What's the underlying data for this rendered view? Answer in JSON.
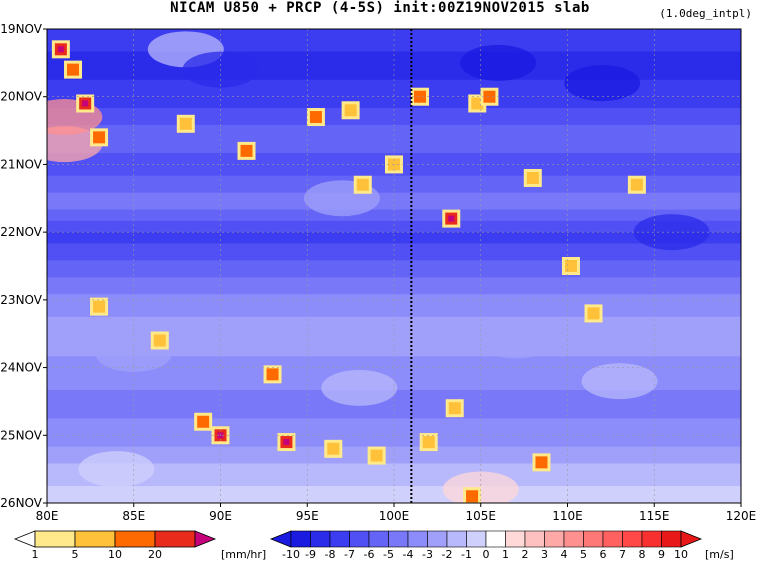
{
  "chart_data": {
    "type": "heatmap",
    "title": "NICAM  U850 + PRCP (4-5S) init:00Z19NOV2015 slab",
    "subtitle": "(1.0deg_intpl)",
    "x_ticks": [
      "80E",
      "85E",
      "90E",
      "95E",
      "100E",
      "105E",
      "110E",
      "115E",
      "120E"
    ],
    "x_range": [
      80,
      120
    ],
    "y_ticks": [
      "19NOV",
      "20NOV",
      "21NOV",
      "22NOV",
      "23NOV",
      "24NOV",
      "25NOV",
      "26NOV"
    ],
    "y_range": [
      "19NOV",
      "26NOV"
    ],
    "reference_line": {
      "lon": 101,
      "style": "dotted",
      "color": "#000000"
    },
    "grid": true,
    "precip_colorbar": {
      "unit": "[mm/hr]",
      "labels": [
        "1",
        "5",
        "10",
        "20"
      ],
      "colors": [
        "#ffffff",
        "#ffe98a",
        "#ffc13a",
        "#ff6a00",
        "#e82b1b",
        "#c6007a"
      ]
    },
    "wind_colorbar": {
      "unit": "[m/s]",
      "labels": [
        "-10",
        "-9",
        "-8",
        "-7",
        "-6",
        "-5",
        "-4",
        "-3",
        "-2",
        "-1",
        "0",
        "1",
        "2",
        "3",
        "4",
        "5",
        "6",
        "7",
        "8",
        "9",
        "10"
      ],
      "colors": [
        "#1a1ae0",
        "#2b2bea",
        "#3c3cf0",
        "#5050f4",
        "#6464f6",
        "#7878f8",
        "#8c8cfa",
        "#a0a0fb",
        "#b8b8fc",
        "#d0d0fd",
        "#ffffff",
        "#ffd8d8",
        "#ffc0c0",
        "#ffa8a8",
        "#ff9090",
        "#ff7878",
        "#ff6060",
        "#ff4848",
        "#f83030",
        "#e81818"
      ]
    },
    "wind_bands": [
      {
        "day": 19.0,
        "level": -8
      },
      {
        "day": 19.5,
        "level": -9
      },
      {
        "day": 20.0,
        "level": -8
      },
      {
        "day": 20.5,
        "level": -6
      },
      {
        "day": 21.0,
        "level": -7
      },
      {
        "day": 21.5,
        "level": -5
      },
      {
        "day": 22.0,
        "level": -8
      },
      {
        "day": 22.5,
        "level": -6
      },
      {
        "day": 23.0,
        "level": -4
      },
      {
        "day": 23.5,
        "level": -3
      },
      {
        "day": 24.0,
        "level": -4
      },
      {
        "day": 24.5,
        "level": -5
      },
      {
        "day": 25.0,
        "level": -4
      },
      {
        "day": 25.5,
        "level": -2
      },
      {
        "day": 26.0,
        "level": -1
      }
    ],
    "precip_cells": [
      {
        "lon": 80.8,
        "day": 19.3,
        "mm": 15
      },
      {
        "lon": 81.5,
        "day": 19.6,
        "mm": 8
      },
      {
        "lon": 82.2,
        "day": 20.1,
        "mm": 12
      },
      {
        "lon": 83.0,
        "day": 20.6,
        "mm": 6
      },
      {
        "lon": 88.0,
        "day": 20.4,
        "mm": 2
      },
      {
        "lon": 91.5,
        "day": 20.8,
        "mm": 5
      },
      {
        "lon": 95.5,
        "day": 20.3,
        "mm": 6
      },
      {
        "lon": 97.5,
        "day": 20.2,
        "mm": 3
      },
      {
        "lon": 98.2,
        "day": 21.3,
        "mm": 4
      },
      {
        "lon": 100.0,
        "day": 21.0,
        "mm": 3
      },
      {
        "lon": 101.5,
        "day": 20.0,
        "mm": 5
      },
      {
        "lon": 104.8,
        "day": 20.1,
        "mm": 4
      },
      {
        "lon": 103.3,
        "day": 21.8,
        "mm": 12
      },
      {
        "lon": 105.5,
        "day": 20.0,
        "mm": 6
      },
      {
        "lon": 108.0,
        "day": 21.2,
        "mm": 3
      },
      {
        "lon": 110.2,
        "day": 22.5,
        "mm": 4
      },
      {
        "lon": 83.0,
        "day": 23.1,
        "mm": 4
      },
      {
        "lon": 86.5,
        "day": 23.6,
        "mm": 3
      },
      {
        "lon": 89.0,
        "day": 24.8,
        "mm": 6
      },
      {
        "lon": 90.0,
        "day": 25.0,
        "mm": 12
      },
      {
        "lon": 93.0,
        "day": 24.1,
        "mm": 8
      },
      {
        "lon": 93.8,
        "day": 25.1,
        "mm": 11
      },
      {
        "lon": 96.5,
        "day": 25.2,
        "mm": 3
      },
      {
        "lon": 99.0,
        "day": 25.3,
        "mm": 3
      },
      {
        "lon": 102.0,
        "day": 25.1,
        "mm": 2
      },
      {
        "lon": 103.5,
        "day": 24.6,
        "mm": 2
      },
      {
        "lon": 104.5,
        "day": 25.9,
        "mm": 7
      },
      {
        "lon": 108.5,
        "day": 25.4,
        "mm": 5
      },
      {
        "lon": 111.5,
        "day": 23.2,
        "mm": 3
      },
      {
        "lon": 114.0,
        "day": 21.3,
        "mm": 3
      }
    ]
  }
}
